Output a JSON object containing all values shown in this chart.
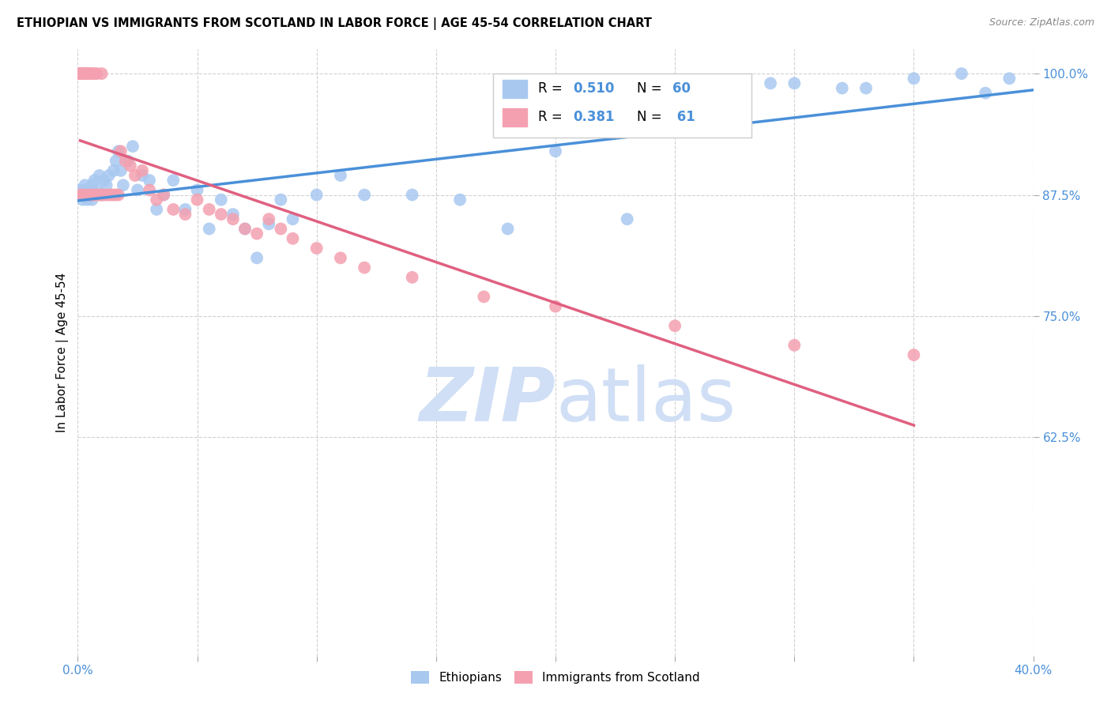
{
  "title": "ETHIOPIAN VS IMMIGRANTS FROM SCOTLAND IN LABOR FORCE | AGE 45-54 CORRELATION CHART",
  "source": "Source: ZipAtlas.com",
  "ylabel_label": "In Labor Force | Age 45-54",
  "xmin": 0.0,
  "xmax": 0.4,
  "ymin": 0.4,
  "ymax": 1.025,
  "blue_color": "#a8c8f0",
  "blue_line_color": "#4a90d9",
  "pink_color": "#f4a0b0",
  "pink_line_color": "#e06080",
  "watermark_color": "#d0dff5",
  "ethiopians_x": [
    0.001,
    0.001,
    0.002,
    0.002,
    0.003,
    0.003,
    0.004,
    0.004,
    0.005,
    0.005,
    0.006,
    0.006,
    0.007,
    0.008,
    0.009,
    0.01,
    0.011,
    0.012,
    0.013,
    0.015,
    0.016,
    0.017,
    0.018,
    0.019,
    0.021,
    0.023,
    0.025,
    0.027,
    0.03,
    0.033,
    0.036,
    0.04,
    0.045,
    0.05,
    0.055,
    0.06,
    0.065,
    0.07,
    0.075,
    0.08,
    0.085,
    0.09,
    0.1,
    0.11,
    0.12,
    0.14,
    0.16,
    0.18,
    0.2,
    0.23,
    0.26,
    0.29,
    0.32,
    0.35,
    0.37,
    0.38,
    0.39,
    0.27,
    0.3,
    0.33
  ],
  "ethiopians_y": [
    0.875,
    0.88,
    0.87,
    0.875,
    0.88,
    0.885,
    0.875,
    0.87,
    0.875,
    0.88,
    0.87,
    0.885,
    0.89,
    0.88,
    0.895,
    0.875,
    0.89,
    0.885,
    0.895,
    0.9,
    0.91,
    0.92,
    0.9,
    0.885,
    0.91,
    0.925,
    0.88,
    0.895,
    0.89,
    0.86,
    0.875,
    0.89,
    0.86,
    0.88,
    0.84,
    0.87,
    0.855,
    0.84,
    0.81,
    0.845,
    0.87,
    0.85,
    0.875,
    0.895,
    0.875,
    0.875,
    0.87,
    0.84,
    0.92,
    0.85,
    0.97,
    0.99,
    0.985,
    0.995,
    1.0,
    0.98,
    0.995,
    0.96,
    0.99,
    0.985
  ],
  "scotland_x": [
    0.001,
    0.001,
    0.001,
    0.001,
    0.001,
    0.002,
    0.002,
    0.002,
    0.002,
    0.003,
    0.003,
    0.003,
    0.004,
    0.004,
    0.005,
    0.005,
    0.005,
    0.006,
    0.006,
    0.007,
    0.007,
    0.008,
    0.008,
    0.009,
    0.01,
    0.01,
    0.011,
    0.012,
    0.013,
    0.014,
    0.015,
    0.016,
    0.017,
    0.018,
    0.02,
    0.022,
    0.024,
    0.027,
    0.03,
    0.033,
    0.036,
    0.04,
    0.045,
    0.05,
    0.055,
    0.06,
    0.065,
    0.07,
    0.075,
    0.08,
    0.085,
    0.09,
    0.1,
    0.11,
    0.12,
    0.14,
    0.17,
    0.2,
    0.25,
    0.3,
    0.35
  ],
  "scotland_y": [
    1.0,
    1.0,
    1.0,
    1.0,
    0.875,
    1.0,
    1.0,
    1.0,
    0.875,
    1.0,
    1.0,
    0.875,
    1.0,
    1.0,
    1.0,
    1.0,
    0.875,
    1.0,
    0.875,
    1.0,
    0.875,
    1.0,
    0.875,
    0.875,
    1.0,
    0.875,
    0.875,
    0.875,
    0.875,
    0.875,
    0.875,
    0.875,
    0.875,
    0.92,
    0.91,
    0.905,
    0.895,
    0.9,
    0.88,
    0.87,
    0.875,
    0.86,
    0.855,
    0.87,
    0.86,
    0.855,
    0.85,
    0.84,
    0.835,
    0.85,
    0.84,
    0.83,
    0.82,
    0.81,
    0.8,
    0.79,
    0.77,
    0.76,
    0.74,
    0.72,
    0.71
  ]
}
